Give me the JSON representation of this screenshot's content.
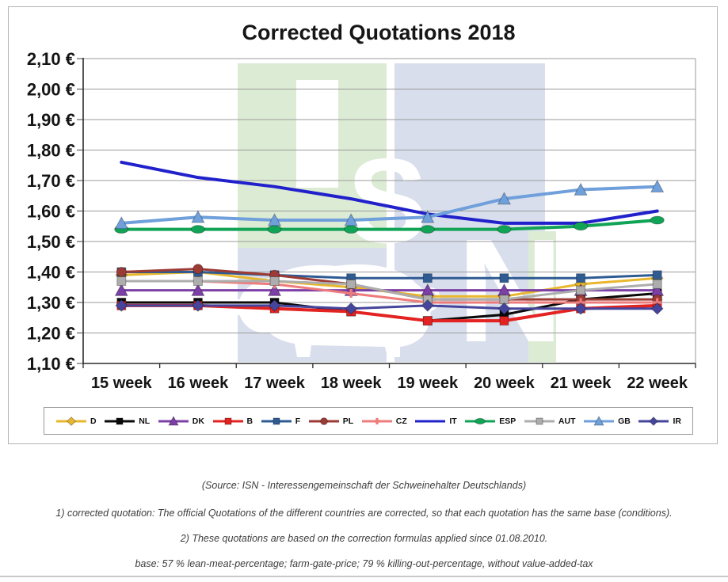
{
  "title": "Corrected Quotations 2018",
  "watermark": {
    "name": "ISN logo watermark",
    "letters": "ISN",
    "green": "#DCEBD4",
    "blue": "#D8DEEC",
    "letter_color": "#FFFFFF"
  },
  "chart_data": {
    "type": "line",
    "title": "Corrected Quotations 2018",
    "categories": [
      "15 week",
      "16 week",
      "17 week",
      "18 week",
      "19 week",
      "20 week",
      "21 week",
      "22 week"
    ],
    "ylim": [
      1.1,
      2.1
    ],
    "ytick_step": 0.1,
    "ytick_values": [
      2.1,
      2.0,
      1.9,
      1.8,
      1.7,
      1.6,
      1.5,
      1.4,
      1.3,
      1.2,
      1.1
    ],
    "ytick_labels": [
      "2,10 €",
      "2,00 €",
      "1,90 €",
      "1,80 €",
      "1,70 €",
      "1,60 €",
      "1,50 €",
      "1,40 €",
      "1,30 €",
      "1,20 €",
      "1,10 €"
    ],
    "grid": true,
    "legend_position": "bottom",
    "series": [
      {
        "name": "D",
        "color": "#E8B72E",
        "marker": "diamond",
        "width": 3,
        "values": [
          1.39,
          1.4,
          1.37,
          1.35,
          1.32,
          1.32,
          1.36,
          1.38
        ]
      },
      {
        "name": "NL",
        "color": "#0A0A0A",
        "marker": "square",
        "width": 3,
        "values": [
          1.3,
          1.3,
          1.3,
          1.27,
          1.24,
          1.26,
          1.31,
          1.33
        ]
      },
      {
        "name": "DK",
        "color": "#7B3FA5",
        "marker": "triangle",
        "width": 3,
        "values": [
          1.34,
          1.34,
          1.34,
          1.34,
          1.34,
          1.34,
          1.34,
          1.34
        ]
      },
      {
        "name": "B",
        "color": "#E32222",
        "marker": "square",
        "width": 4,
        "values": [
          1.29,
          1.29,
          1.28,
          1.27,
          1.24,
          1.24,
          1.28,
          1.29
        ]
      },
      {
        "name": "F",
        "color": "#2F5B93",
        "marker": "square",
        "width": 3,
        "values": [
          1.4,
          1.4,
          1.39,
          1.38,
          1.38,
          1.38,
          1.38,
          1.39
        ]
      },
      {
        "name": "PL",
        "color": "#9C3B36",
        "marker": "circle",
        "width": 3,
        "values": [
          1.4,
          1.41,
          1.39,
          1.36,
          1.31,
          1.31,
          1.31,
          1.31
        ]
      },
      {
        "name": "CZ",
        "color": "#EE7C7C",
        "marker": "plus",
        "width": 3,
        "values": [
          1.37,
          1.37,
          1.36,
          1.33,
          1.3,
          1.3,
          1.3,
          1.3
        ]
      },
      {
        "name": "IT",
        "color": "#2121CC",
        "marker": "none",
        "width": 4,
        "values": [
          1.76,
          1.71,
          1.68,
          1.64,
          1.59,
          1.56,
          1.56,
          1.6
        ]
      },
      {
        "name": "ESP",
        "color": "#12A456",
        "marker": "oval",
        "width": 4,
        "values": [
          1.54,
          1.54,
          1.54,
          1.54,
          1.54,
          1.54,
          1.55,
          1.57
        ]
      },
      {
        "name": "AUT",
        "color": "#ADADAD",
        "marker": "square",
        "width": 3,
        "values": [
          1.37,
          1.37,
          1.37,
          1.36,
          1.31,
          1.31,
          1.34,
          1.36
        ]
      },
      {
        "name": "GB",
        "color": "#6FA0DB",
        "marker": "triangle",
        "width": 4,
        "values": [
          1.56,
          1.58,
          1.57,
          1.57,
          1.58,
          1.64,
          1.67,
          1.68
        ]
      },
      {
        "name": "IR",
        "color": "#45459C",
        "marker": "diamond",
        "width": 3,
        "values": [
          1.29,
          1.29,
          1.29,
          1.28,
          1.29,
          1.28,
          1.28,
          1.28
        ]
      }
    ]
  },
  "footer": {
    "line1": "(Source: ISN - Interessengemeinschaft der Schweinehalter Deutschlands)",
    "line2": "1) corrected quotation: The official Quotations of the different countries are corrected, so that each quotation has the same base (conditions).",
    "line3": "2) These quotations are based on the correction formulas applied since 01.08.2010.",
    "line4": "base: 57 % lean-meat-percentage; farm-gate-price; 79 % killing-out-percentage, without value-added-tax"
  }
}
